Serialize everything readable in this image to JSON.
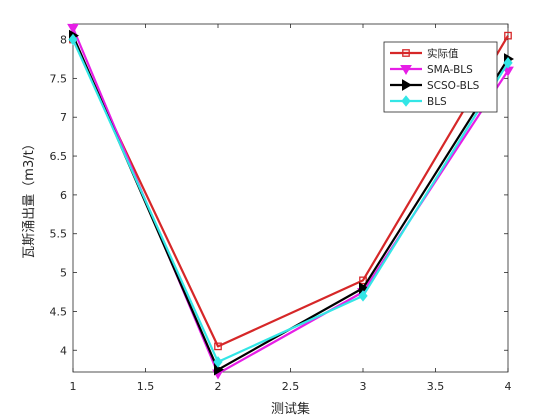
{
  "chart_data": {
    "type": "line",
    "xlabel": "测试集",
    "ylabel": "瓦斯涌出量（m3/t）",
    "x": [
      1,
      2,
      3,
      4
    ],
    "xlim": [
      1,
      4
    ],
    "ylim": [
      3.72,
      8.2
    ],
    "xticks": [
      "1",
      "1.5",
      "2",
      "2.5",
      "3",
      "3.5",
      "4"
    ],
    "yticks": [
      "4",
      "4.5",
      "5",
      "5.5",
      "6",
      "6.5",
      "7",
      "7.5",
      "8"
    ],
    "grid": false,
    "legend_position": "top-right",
    "series": [
      {
        "name": "实际值",
        "color": "#d62728",
        "marker": "square",
        "values": [
          8.0,
          4.05,
          4.9,
          8.05
        ]
      },
      {
        "name": "SMA-BLS",
        "color": "#e61ee6",
        "marker": "triangle-down",
        "values": [
          8.15,
          3.7,
          4.75,
          7.6
        ]
      },
      {
        "name": "SCSO-BLS",
        "color": "#000000",
        "marker": "triangle-right",
        "values": [
          8.05,
          3.75,
          4.8,
          7.75
        ]
      },
      {
        "name": "BLS",
        "color": "#33e6e6",
        "marker": "diamond",
        "values": [
          8.0,
          3.85,
          4.7,
          7.7
        ]
      }
    ]
  }
}
